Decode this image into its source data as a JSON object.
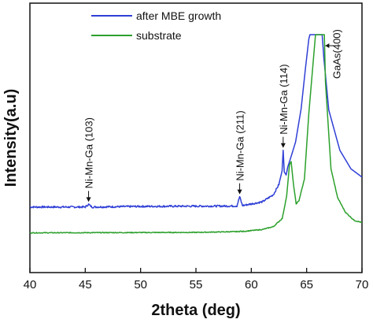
{
  "chart_data": {
    "type": "line",
    "title": "",
    "xlabel": "2theta (deg)",
    "ylabel": "Intensity(a.u)",
    "xlim": [
      40,
      70
    ],
    "ylim": [
      0,
      100
    ],
    "xticks": [
      40,
      45,
      50,
      55,
      60,
      65,
      70
    ],
    "yticks_shown": false,
    "grid": false,
    "legend_position": "top-left",
    "series": [
      {
        "name": "after MBE growth",
        "color": "#2f3fd6",
        "x": [
          40,
          45.0,
          45.3,
          45.6,
          50,
          58.7,
          58.95,
          59.2,
          61,
          62,
          62.5,
          62.78,
          62.88,
          62.98,
          63.15,
          63.3,
          63.6,
          64,
          64.5,
          64.9,
          65.2,
          65.3,
          66.4,
          66.55,
          67,
          68,
          69,
          70
        ],
        "y": [
          16.5,
          16.5,
          17.8,
          16.5,
          16.8,
          17.0,
          21.5,
          17.2,
          19.0,
          22.5,
          27.5,
          34.0,
          44.0,
          33.5,
          32.0,
          36.0,
          41.0,
          48.0,
          64.0,
          84.0,
          98.0,
          100,
          100,
          89.0,
          63.5,
          44.0,
          35.0,
          31.0
        ]
      },
      {
        "name": "substrate",
        "color": "#2ca02c",
        "x": [
          40,
          55,
          58.9,
          59.0,
          59.1,
          61,
          62,
          62.8,
          63.2,
          63.45,
          63.6,
          63.8,
          64.05,
          64.3,
          64.8,
          65.2,
          65.8,
          66.1,
          66.6,
          66.7,
          67.2,
          67.8,
          68.5,
          69.3,
          70
        ],
        "y": [
          4.0,
          4.2,
          4.6,
          4.9,
          4.6,
          5.6,
          7.0,
          11.0,
          22.0,
          37.0,
          38.5,
          28.0,
          18.0,
          19.5,
          30.0,
          62.0,
          100,
          100,
          100,
          77.0,
          35.0,
          21.0,
          14.0,
          10.0,
          9.0
        ]
      }
    ],
    "annotations": [
      {
        "text": "Ni-Mn-Ga (103)",
        "x": 45.3
      },
      {
        "text": "Ni-Mn-Ga (211)",
        "x": 58.95
      },
      {
        "text": "Ni-Mn-Ga (114)",
        "x": 62.88
      },
      {
        "text": "GaAs(400)",
        "x": 66.4
      }
    ]
  }
}
